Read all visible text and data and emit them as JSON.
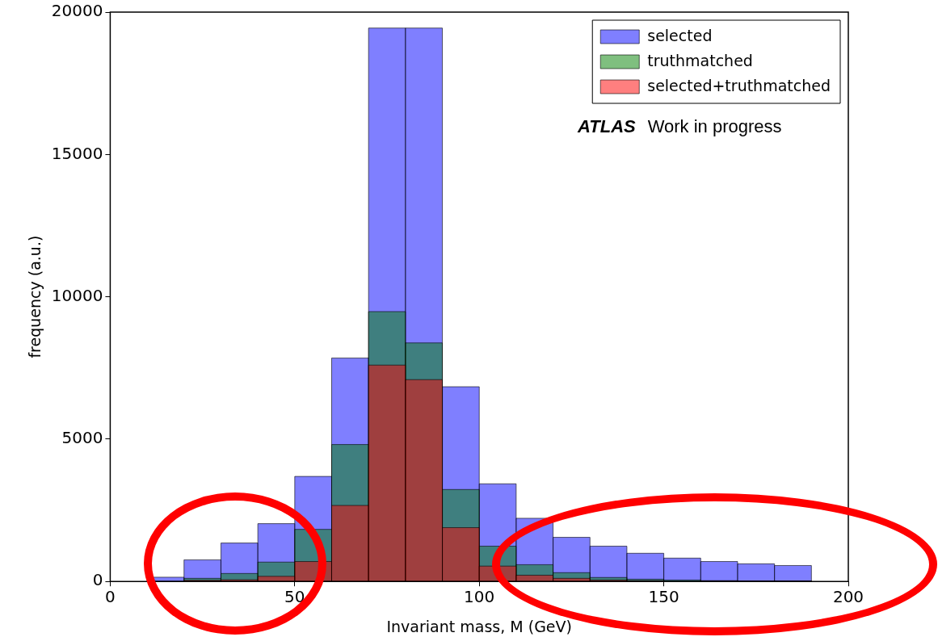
{
  "chart_data": {
    "type": "histogram",
    "xlabel": "Invariant mass, M (GeV)",
    "ylabel": "frequency (a.u.)",
    "bins": [
      10,
      20,
      30,
      40,
      50,
      60,
      70,
      80,
      90,
      100,
      110,
      120,
      130,
      140,
      150,
      160,
      170,
      180,
      190
    ],
    "series": [
      {
        "name": "selected",
        "color": "#0000ff",
        "values": [
          150,
          760,
          1350,
          2030,
          3690,
          7850,
          19440,
          19440,
          6840,
          3430,
          2220,
          1550,
          1240,
          990,
          820,
          700,
          620,
          560
        ]
      },
      {
        "name": "truthmatched",
        "color": "#008000",
        "values": [
          null,
          110,
          280,
          680,
          1830,
          4810,
          9480,
          8380,
          3230,
          1240,
          590,
          310,
          140,
          80,
          50,
          30,
          20,
          20
        ]
      },
      {
        "name": "selected+truthmatched",
        "color": "#ff0000",
        "values": [
          0,
          40,
          60,
          180,
          700,
          2670,
          7600,
          7090,
          1890,
          540,
          220,
          110,
          50,
          30,
          null,
          10,
          10,
          10
        ]
      }
    ],
    "xlim": [
      0,
      200
    ],
    "xticks": [
      0,
      50,
      100,
      150,
      200
    ],
    "ylim": [
      0,
      20000
    ],
    "yticks": [
      0,
      5000,
      10000,
      15000,
      20000
    ],
    "grid": false,
    "legend": "top right",
    "annotations": [
      "ATLAS",
      "Work in progress"
    ]
  }
}
